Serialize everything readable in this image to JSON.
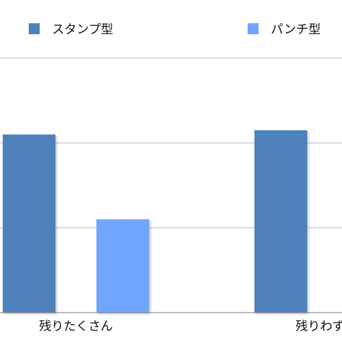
{
  "chart_data": {
    "type": "bar",
    "title": "",
    "xlabel": "",
    "ylabel": "",
    "categories": [
      "残りたくさん",
      "残りわず"
    ],
    "series": [
      {
        "name": "スタンプ型",
        "color": "#4f81bd",
        "values": [
          2.1,
          2.15
        ]
      },
      {
        "name": "パンチ型",
        "color": "#6fa6ff",
        "values": [
          1.1,
          null
        ]
      }
    ],
    "ylim": [
      0,
      3
    ],
    "grid": true,
    "legend": "top"
  }
}
